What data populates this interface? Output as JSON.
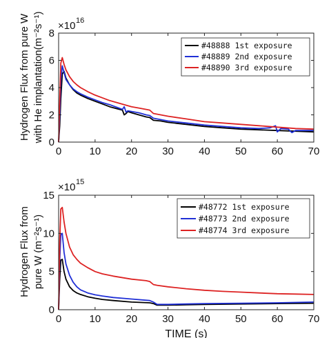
{
  "chart_data": [
    {
      "type": "line",
      "ylabel_lines": [
        "Hydrogen Flux from pure W",
        "with He implantation(m⁻²s⁻¹)"
      ],
      "xlabel": "",
      "multiplier": "×10",
      "multiplier_exp": "16",
      "xlim": [
        0,
        70
      ],
      "ylim": [
        0,
        8
      ],
      "xticks": [
        0,
        10,
        20,
        30,
        40,
        50,
        60,
        70
      ],
      "yticks": [
        0,
        2,
        4,
        6,
        8
      ],
      "xtick_labels": [
        "0",
        "10",
        "20",
        "30",
        "40",
        "50",
        "60",
        "70"
      ],
      "ytick_labels": [
        "0",
        "2",
        "4",
        "6",
        "8"
      ],
      "grid": false,
      "legend_position": "top-right",
      "series": [
        {
          "name": "#48888 1st exposure",
          "color": "#000000",
          "x": [
            0,
            0.3,
            0.6,
            1,
            1.5,
            2,
            3,
            4,
            5,
            6,
            8,
            10,
            12,
            14,
            16,
            17.5,
            18,
            18.5,
            19,
            20,
            22,
            24,
            25,
            26,
            28,
            30,
            35,
            40,
            45,
            50,
            55,
            60,
            65,
            70
          ],
          "y": [
            0,
            1.2,
            3.2,
            5.0,
            5.2,
            4.7,
            4.2,
            3.85,
            3.6,
            3.45,
            3.2,
            3.0,
            2.8,
            2.6,
            2.45,
            2.35,
            2.0,
            2.1,
            2.25,
            2.15,
            2.0,
            1.85,
            1.8,
            1.6,
            1.55,
            1.45,
            1.3,
            1.15,
            1.05,
            0.95,
            0.9,
            0.85,
            0.8,
            0.75
          ]
        },
        {
          "name": "#48889 2nd exposure",
          "color": "#1f2fd6",
          "x": [
            0,
            0.3,
            0.6,
            1,
            1.5,
            2,
            3,
            4,
            5,
            6,
            8,
            10,
            12,
            14,
            16,
            17.5,
            18,
            18.5,
            19,
            20,
            22,
            24,
            25,
            26,
            28,
            30,
            35,
            40,
            45,
            50,
            55,
            58,
            59.5,
            60,
            61,
            63,
            64,
            65,
            70
          ],
          "y": [
            0,
            2.0,
            4.5,
            5.6,
            5.1,
            4.6,
            4.2,
            3.9,
            3.7,
            3.55,
            3.3,
            3.1,
            2.9,
            2.75,
            2.55,
            2.4,
            2.6,
            2.2,
            2.3,
            2.25,
            2.15,
            2.0,
            1.95,
            1.75,
            1.65,
            1.55,
            1.4,
            1.25,
            1.15,
            1.05,
            1.0,
            1.05,
            1.2,
            0.75,
            1.0,
            0.95,
            0.7,
            0.85,
            0.85
          ]
        },
        {
          "name": "#48890 3rd exposure",
          "color": "#dd2222",
          "x": [
            0,
            0.3,
            0.6,
            1,
            1.5,
            2,
            3,
            4,
            5,
            6,
            8,
            10,
            12,
            14,
            16,
            18,
            20,
            22,
            24,
            25,
            26,
            28,
            30,
            35,
            40,
            45,
            50,
            55,
            60,
            65,
            70
          ],
          "y": [
            0,
            3.0,
            5.8,
            6.2,
            5.7,
            5.3,
            4.8,
            4.45,
            4.2,
            4.0,
            3.7,
            3.45,
            3.25,
            3.05,
            2.9,
            2.75,
            2.6,
            2.5,
            2.4,
            2.35,
            2.1,
            2.0,
            1.9,
            1.7,
            1.5,
            1.4,
            1.3,
            1.2,
            1.1,
            1.0,
            0.95
          ]
        }
      ]
    },
    {
      "type": "line",
      "ylabel_lines": [
        "Hydrogen Flux from",
        "pure W (m⁻²s⁻¹)"
      ],
      "xlabel": "TIME (s)",
      "multiplier": "×10",
      "multiplier_exp": "15",
      "xlim": [
        0,
        70
      ],
      "ylim": [
        0,
        15
      ],
      "xticks": [
        0,
        10,
        20,
        30,
        40,
        50,
        60,
        70
      ],
      "yticks": [
        0,
        5,
        10,
        15
      ],
      "xtick_labels": [
        "0",
        "10",
        "20",
        "30",
        "40",
        "50",
        "60",
        "70"
      ],
      "ytick_labels": [
        "0",
        "5",
        "10",
        "15"
      ],
      "grid": false,
      "legend_position": "top-right",
      "series": [
        {
          "name": "#48772 1st exposure",
          "color": "#000000",
          "x": [
            0,
            0.3,
            0.6,
            1,
            1.5,
            2,
            3,
            4,
            5,
            6,
            8,
            10,
            12,
            15,
            20,
            25,
            26,
            27,
            30,
            35,
            40,
            50,
            60,
            70
          ],
          "y": [
            0,
            4.0,
            6.5,
            6.6,
            5.0,
            4.0,
            3.0,
            2.5,
            2.2,
            2.0,
            1.7,
            1.5,
            1.35,
            1.2,
            1.0,
            0.9,
            0.8,
            0.6,
            0.6,
            0.65,
            0.7,
            0.75,
            0.8,
            0.85
          ]
        },
        {
          "name": "#48773 2nd exposure",
          "color": "#1f2fd6",
          "x": [
            0,
            0.3,
            0.6,
            1,
            1.5,
            2,
            3,
            4,
            5,
            6,
            8,
            10,
            12,
            15,
            20,
            25,
            26,
            27,
            30,
            35,
            40,
            50,
            60,
            70
          ],
          "y": [
            0,
            6.5,
            9.8,
            10.0,
            7.5,
            6.0,
            4.5,
            3.6,
            3.0,
            2.6,
            2.2,
            1.95,
            1.8,
            1.6,
            1.4,
            1.2,
            1.0,
            0.7,
            0.7,
            0.75,
            0.8,
            0.85,
            0.9,
            1.0
          ]
        },
        {
          "name": "#48774 3rd exposure",
          "color": "#dd2222",
          "x": [
            0,
            0.3,
            0.6,
            1,
            1.5,
            2,
            3,
            4,
            5,
            6,
            8,
            10,
            12,
            15,
            20,
            24,
            25,
            25.5,
            26,
            27,
            30,
            35,
            40,
            45,
            50,
            55,
            60,
            65,
            70
          ],
          "y": [
            0,
            9.0,
            13.2,
            13.4,
            11.5,
            10.0,
            8.2,
            7.2,
            6.6,
            6.1,
            5.5,
            5.0,
            4.7,
            4.4,
            4.0,
            3.8,
            3.7,
            3.5,
            3.3,
            3.2,
            3.0,
            2.75,
            2.55,
            2.4,
            2.3,
            2.2,
            2.1,
            2.05,
            2.0
          ]
        }
      ]
    }
  ]
}
